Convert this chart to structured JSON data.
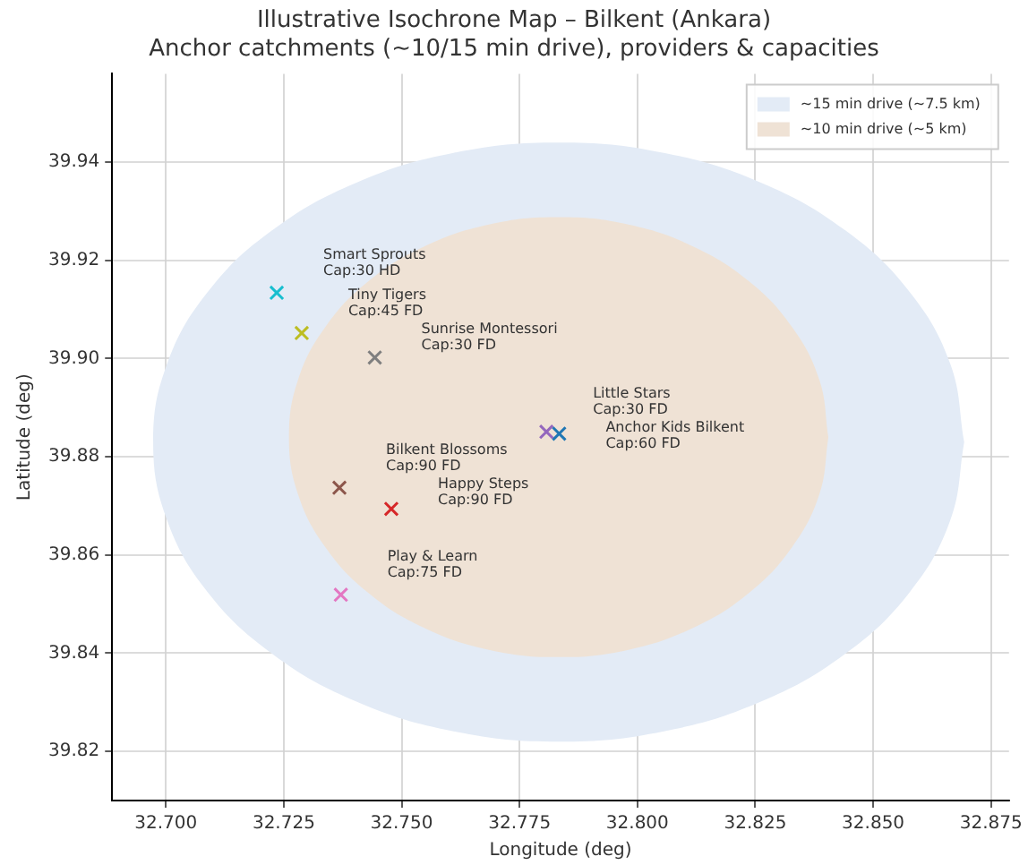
{
  "chart_data": {
    "type": "scatter",
    "title": "Illustrative Isochrone Map – Bilkent (Ankara)",
    "subtitle": "Anchor catchments (~10/15 min drive), providers & capacities",
    "xlabel": "Longitude (deg)",
    "ylabel": "Latitude (deg)",
    "xlim": [
      32.6886,
      32.8788
    ],
    "ylim": [
      39.81,
      39.958
    ],
    "xticks": [
      {
        "value": 32.7,
        "label": "32.700"
      },
      32.725,
      {
        "value": 32.75,
        "label": "32.750"
      },
      32.775,
      {
        "value": 32.8,
        "label": "32.800"
      },
      32.825,
      {
        "value": 32.85,
        "label": "32.850"
      },
      32.875
    ],
    "yticks": [
      39.82,
      39.84,
      39.86,
      39.88,
      {
        "value": 39.9,
        "label": "39.90"
      },
      39.92,
      39.94
    ],
    "grid": true,
    "legend": "top right",
    "series": [
      {
        "type": "area",
        "name": "~15 min drive (~7.5 km)",
        "color": "#e3ebf6",
        "x": [
          32.8693,
          32.8664,
          32.8578,
          32.8441,
          32.8263,
          32.8056,
          32.7833,
          32.761,
          32.7403,
          32.7225,
          32.7088,
          32.7002,
          32.6973,
          32.7002,
          32.7088,
          32.7225,
          32.7403,
          32.761,
          32.7833,
          32.8056,
          32.8263,
          32.8441,
          32.8578,
          32.8664,
          32.8693
        ],
        "values": [
          39.883,
          39.8988,
          39.9135,
          39.9261,
          39.9358,
          39.9419,
          39.944,
          39.9419,
          39.9358,
          39.9261,
          39.9135,
          39.8988,
          39.883,
          39.8672,
          39.8525,
          39.8399,
          39.8302,
          39.8241,
          39.822,
          39.8241,
          39.8302,
          39.8399,
          39.8525,
          39.8672,
          39.883
        ]
      },
      {
        "type": "area",
        "name": "~10 min drive (~5 km)",
        "color": "#efe2d5",
        "x": [
          32.8405,
          32.8386,
          32.8328,
          32.8237,
          32.8119,
          32.7981,
          32.7833,
          32.7685,
          32.7547,
          32.7429,
          32.7338,
          32.728,
          32.7261,
          32.728,
          32.7338,
          32.7429,
          32.7547,
          32.7685,
          32.7833,
          32.7981,
          32.8119,
          32.8237,
          32.8328,
          32.8386,
          32.8405
        ],
        "values": [
          39.884,
          39.8956,
          39.9064,
          39.9157,
          39.9228,
          39.9273,
          39.9288,
          39.9273,
          39.9228,
          39.9157,
          39.9064,
          39.8956,
          39.884,
          39.8724,
          39.8616,
          39.8523,
          39.8452,
          39.8407,
          39.8392,
          39.8407,
          39.8452,
          39.8523,
          39.8616,
          39.8724,
          39.884
        ]
      },
      {
        "color": "#17becf",
        "marker": "cross",
        "x": [
          32.7235
        ],
        "values": [
          39.9134
        ]
      },
      {
        "color": "#bcbd22",
        "marker": "cross",
        "x": [
          32.7288
        ],
        "values": [
          39.9052
        ]
      },
      {
        "color": "#7f7f7f",
        "marker": "cross",
        "x": [
          32.7443
        ],
        "values": [
          39.9002
        ]
      },
      {
        "color": "#9467bd",
        "marker": "cross",
        "x": [
          32.7807
        ],
        "values": [
          39.8851
        ]
      },
      {
        "color": "#1f77b4",
        "marker": "cross",
        "x": [
          32.7834
        ],
        "values": [
          39.8847
        ]
      },
      {
        "color": "#8c564b",
        "marker": "cross",
        "x": [
          32.7368
        ],
        "values": [
          39.8737
        ]
      },
      {
        "color": "#d62728",
        "marker": "cross",
        "x": [
          32.7478
        ],
        "values": [
          39.8694
        ]
      },
      {
        "color": "#e377c2",
        "marker": "cross",
        "x": [
          32.7371
        ],
        "values": [
          39.8519
        ]
      }
    ],
    "annotations": [
      "Smart Sprouts\nCap:30 HD",
      "Tiny Tigers\nCap:45 FD",
      "Sunrise Montessori\nCap:30 FD",
      "Little Stars\nCap:30 FD",
      "Anchor Kids Bilkent\nCap:60 FD",
      "Bilkent Blossoms\nCap:90 FD",
      "Happy Steps\nCap:90 FD",
      "Play & Learn\nCap:75 FD"
    ]
  }
}
